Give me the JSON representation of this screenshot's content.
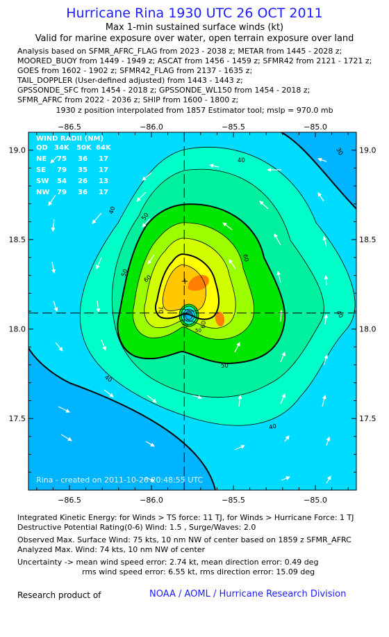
{
  "header": {
    "title": "Hurricane Rina 1930 UTC 26 OCT 2011",
    "subtitle": "Max 1-min sustained surface winds (kt)",
    "valid": "Valid for marine exposure over water, open terrain exposure over land",
    "analysis_lines": [
      "Analysis based on SFMR_AFRC_FLAG from 2023 - 2038 z; METAR from 1445 - 2028 z;",
      "MOORED_BUOY from 1449 - 1949 z; ASCAT from 1456 - 1459 z; SFMR42 from 2121 - 1721 z;",
      "GOES from 1602 - 1902 z; SFMR42_FLAG from 2137 - 1635 z;",
      "TAIL_DOPPLER (User-defined adjusted) from 1443 - 1443 z;",
      "GPSSONDE_SFC from 1454 - 2018 z; GPSSONDE_WL150 from 1454 - 2018 z;",
      "SFMR_AFRC from 2022 - 2036 z; SHIP from 1600 - 1800 z;"
    ],
    "interp": "1930 z position interpolated from 1857 Estimator tool; mslp = 970.0 mb"
  },
  "map": {
    "lon_labels": [
      "−86.5",
      "−86.0",
      "−85.5",
      "−85.0"
    ],
    "lat_labels": [
      "19.0",
      "18.5",
      "18.0",
      "17.5"
    ],
    "lon_values": [
      -86.5,
      -86.0,
      -85.5,
      -85.0
    ],
    "lat_values": [
      19.0,
      18.5,
      18.0,
      17.5
    ],
    "lon_range": [
      -86.75,
      -84.75
    ],
    "lat_range": [
      17.1,
      19.1
    ],
    "center": {
      "lon": -85.8,
      "lat": 18.09
    },
    "contour_labels": [
      "30",
      "40",
      "40",
      "40",
      "40",
      "40",
      "50",
      "50",
      "60",
      "50",
      "70",
      "60",
      "60",
      "50",
      "50"
    ],
    "colors": {
      "c0": "#00b4ff",
      "c30": "#00dcff",
      "c34": "#00ffc8",
      "c40": "#00f0a0",
      "c50": "#00e600",
      "c55": "#9bff00",
      "c60": "#d2ff00",
      "c64": "#ffff00",
      "c70": "#ffc800",
      "c80": "#ff7d00",
      "c100": "#ff0000",
      "c120": "#ff00c8"
    },
    "wind_radii": {
      "title": "WIND RADII (NM)",
      "header": [
        "QD",
        "34K",
        "50K",
        "64K"
      ],
      "rows": [
        [
          "NE",
          "75",
          "36",
          "17"
        ],
        [
          "SE",
          "79",
          "35",
          "17"
        ],
        [
          "SW",
          "54",
          "26",
          "13"
        ],
        [
          "NW",
          "79",
          "36",
          "17"
        ]
      ]
    },
    "credit": "Rina - created on 2011-10-26 20:48:55 UTC"
  },
  "footer": {
    "lines": [
      "Integrated Kinetic Energy:  for Winds > TS force: 11 TJ,  for Winds > Hurricane Force: 1 TJ",
      "Destructive Potential Rating(0-6)   Wind: 1.5 , Surge/Waves: 2.0",
      "Observed Max. Surface Wind: 75 kts, 10 nm NW of center based on 1859 z SFMR_AFRC",
      "Analyzed Max. Wind: 74 kts, 10 nm NW of center",
      "Uncertainty -> mean wind speed error: 2.74 kt,   mean direction error: 0.49 deg",
      "rms wind speed error: 6.55 kt,   rms direction error: 15.09 deg"
    ],
    "research": "Research product of",
    "org": "NOAA / AOML / Hurricane Research Division"
  }
}
